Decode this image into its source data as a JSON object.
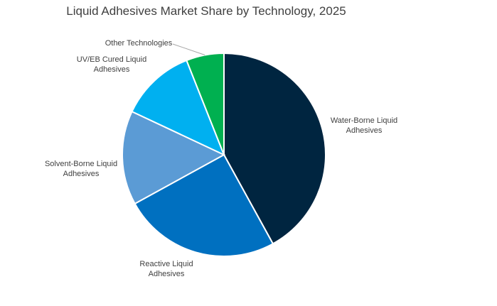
{
  "chart_data": {
    "type": "pie",
    "title": "Liquid Adhesives Market Share by Technology, 2025",
    "start_angle_deg": 0,
    "direction": "clockwise",
    "legend": "none",
    "slices": [
      {
        "name": "Water-Borne Liquid Adhesives",
        "label_lines": [
          "Water-Borne Liquid",
          "Adhesives"
        ],
        "value": 42,
        "color": "#002540"
      },
      {
        "name": "Reactive Liquid Adhesives",
        "label_lines": [
          "Reactive Liquid",
          "Adhesives"
        ],
        "value": 25,
        "color": "#0070C0"
      },
      {
        "name": "Solvent-Borne Liquid Adhesives",
        "label_lines": [
          "Solvent-Borne Liquid",
          "Adhesives"
        ],
        "value": 15,
        "color": "#5B9BD5"
      },
      {
        "name": "UV/EB Cured Liquid Adhesives",
        "label_lines": [
          "UV/EB Cured Liquid",
          "Adhesives"
        ],
        "value": 12,
        "color": "#00B0F0"
      },
      {
        "name": "Other Technologies",
        "label_lines": [
          "Other Technologies"
        ],
        "value": 6,
        "color": "#00B050"
      }
    ]
  }
}
